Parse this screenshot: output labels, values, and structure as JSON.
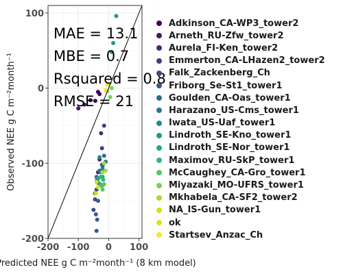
{
  "chart_data": {
    "type": "scatter",
    "xlabel": "Predicted NEE g C m⁻²month⁻¹ (8 km model)",
    "ylabel": "Observed NEE g C m⁻²month⁻¹",
    "xlim": [
      -200,
      110
    ],
    "ylim": [
      -200,
      110
    ],
    "xticks": [
      -200,
      -100,
      0,
      100
    ],
    "yticks": [
      -200,
      -100,
      0,
      100
    ],
    "grid": true,
    "legend_position": "right",
    "reference_line": {
      "slope": 1,
      "intercept": 0
    },
    "stats": [
      {
        "label": "MAE",
        "value": "13.1"
      },
      {
        "label": "MBE",
        "value": "0.7"
      },
      {
        "label": "Rsquared",
        "value": "0.8"
      },
      {
        "label": "RMSE",
        "value": "21"
      }
    ],
    "series": [
      {
        "name": "Adkinson_CA-WP3_tower2",
        "color": "#440154",
        "points": [
          [
            -44,
            -17
          ],
          [
            -30,
            -8
          ],
          [
            -35,
            -5
          ]
        ]
      },
      {
        "name": "Arneth_RU-Zfw_tower2",
        "color": "#481668",
        "points": [
          [
            -100,
            -27
          ],
          [
            -80,
            -22
          ],
          [
            -60,
            -16
          ]
        ]
      },
      {
        "name": "Aurela_FI-Ken_tower2",
        "color": "#482878",
        "points": [
          [
            -35,
            -112
          ],
          [
            -30,
            -95
          ],
          [
            -25,
            -60
          ]
        ]
      },
      {
        "name": "Emmerton_CA-LHazen2_tower2",
        "color": "#443983",
        "points": [
          [
            -28,
            -110
          ],
          [
            -22,
            -80
          ],
          [
            -15,
            -50
          ]
        ]
      },
      {
        "name": "Falk_Zackenberg_Ch",
        "color": "#3E4A89",
        "points": [
          [
            -50,
            -162
          ],
          [
            -45,
            -148
          ],
          [
            -40,
            -135
          ],
          [
            -35,
            -126
          ]
        ]
      },
      {
        "name": "Friborg_Se-St1_tower1",
        "color": "#375A8C",
        "points": [
          [
            -40,
            -190
          ],
          [
            -38,
            -175
          ],
          [
            -42,
            -168
          ],
          [
            -35,
            -150
          ]
        ]
      },
      {
        "name": "Goulden_CA-Oas_tower1",
        "color": "#31688E",
        "points": [
          [
            -20,
            -104
          ],
          [
            -10,
            -98
          ],
          [
            -15,
            -90
          ],
          [
            -22,
            -102
          ]
        ]
      },
      {
        "name": "Harazano_US-Cms_tower1",
        "color": "#2A788E",
        "points": [
          [
            -45,
            -140
          ],
          [
            -40,
            -118
          ],
          [
            -30,
            -110
          ],
          [
            -38,
            -122
          ]
        ]
      },
      {
        "name": "Iwata_US-Uaf_tower1",
        "color": "#23888E",
        "points": [
          [
            -20,
            -108
          ],
          [
            -15,
            -100
          ],
          [
            -25,
            -112
          ],
          [
            -30,
            -92
          ]
        ]
      },
      {
        "name": "Lindroth_SE-Kno_tower1",
        "color": "#1F988B",
        "points": [
          [
            25,
            96
          ],
          [
            15,
            60
          ],
          [
            10,
            48
          ]
        ]
      },
      {
        "name": "Lindroth_SE-Nor_tower1",
        "color": "#22A884",
        "points": [
          [
            -28,
            -128
          ],
          [
            -20,
            -118
          ],
          [
            -34,
            -120
          ]
        ]
      },
      {
        "name": "Maximov_RU-SkP_tower1",
        "color": "#35B779",
        "points": [
          [
            -22,
            -130
          ],
          [
            -18,
            -122
          ],
          [
            -26,
            -118
          ]
        ]
      },
      {
        "name": "McCaughey_CA-Gro_tower1",
        "color": "#54C568",
        "points": [
          [
            -20,
            -135
          ],
          [
            -25,
            -130
          ],
          [
            -15,
            -128
          ]
        ]
      },
      {
        "name": "Miyazaki_MO-UFRS_tower1",
        "color": "#7AD151",
        "points": [
          [
            5,
            -12
          ],
          [
            10,
            0
          ],
          [
            0,
            5
          ],
          [
            -5,
            -4
          ]
        ]
      },
      {
        "name": "Mkhabela_CA-SF2_tower2",
        "color": "#A5DB36",
        "points": [
          [
            -10,
            -110
          ],
          [
            -20,
            -112
          ],
          [
            -15,
            -100
          ]
        ]
      },
      {
        "name": "NA_IS-Gun_tower1",
        "color": "#D2E21B",
        "points": [
          [
            -40,
            -125
          ],
          [
            -42,
            -140
          ],
          [
            -35,
            -132
          ]
        ]
      },
      {
        "name": "ok",
        "color": "#D8E219",
        "points": []
      },
      {
        "name": "Startsev_Anzac_Ch",
        "color": "#FDE725",
        "points": [
          [
            -5,
            5
          ],
          [
            -10,
            -3
          ]
        ]
      }
    ]
  }
}
